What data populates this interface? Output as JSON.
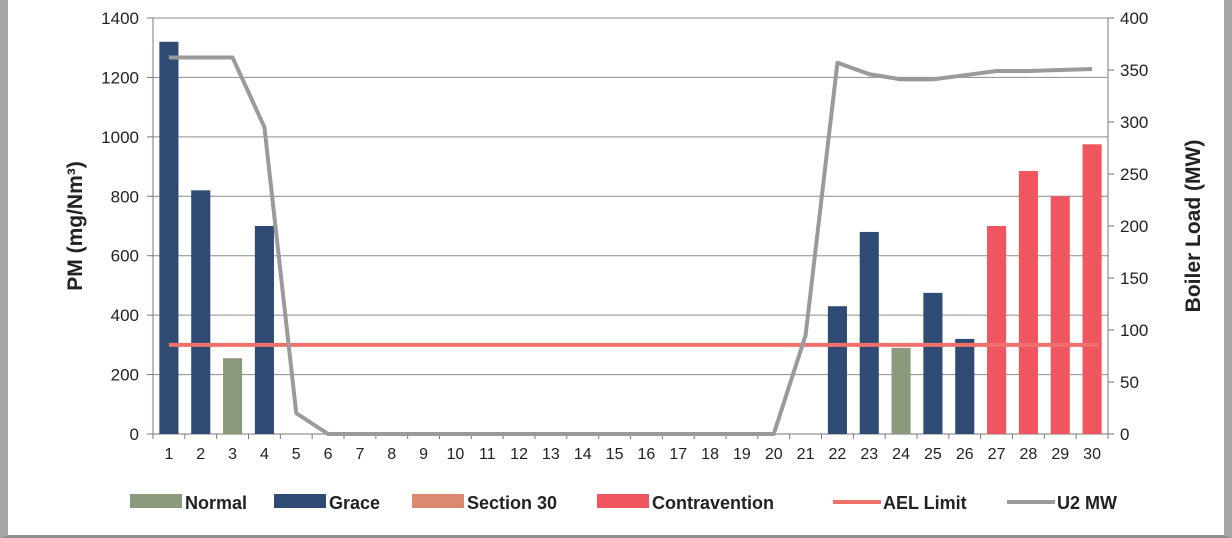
{
  "chart_data": {
    "type": "bar",
    "categories": [
      "1",
      "2",
      "3",
      "4",
      "5",
      "6",
      "7",
      "8",
      "9",
      "10",
      "11",
      "12",
      "13",
      "14",
      "15",
      "16",
      "17",
      "18",
      "19",
      "20",
      "21",
      "22",
      "23",
      "24",
      "25",
      "26",
      "27",
      "28",
      "29",
      "30"
    ],
    "left_axis": {
      "label": "PM (mg/Nm³)",
      "ylim": [
        0,
        1400
      ],
      "ticks": [
        "0",
        "200",
        "400",
        "600",
        "800",
        "1000",
        "1200",
        "1400"
      ]
    },
    "right_axis": {
      "label": "Boiler Load (MW)",
      "ylim": [
        0,
        400
      ],
      "ticks": [
        "0",
        "50",
        "100",
        "150",
        "200",
        "250",
        "300",
        "350",
        "400"
      ]
    },
    "grid": true,
    "legend_position": "bottom",
    "series": [
      {
        "name": "Normal",
        "kind": "bar",
        "axis": "left",
        "color": "#8a9a7b",
        "values": [
          null,
          null,
          255,
          null,
          null,
          null,
          null,
          null,
          null,
          null,
          null,
          null,
          null,
          null,
          null,
          null,
          null,
          null,
          null,
          null,
          null,
          null,
          null,
          290,
          null,
          null,
          null,
          null,
          null,
          null
        ]
      },
      {
        "name": "Grace",
        "kind": "bar",
        "axis": "left",
        "color": "#2f4b73",
        "values": [
          1320,
          820,
          null,
          700,
          null,
          null,
          null,
          null,
          null,
          null,
          null,
          null,
          null,
          null,
          null,
          null,
          null,
          null,
          null,
          null,
          null,
          430,
          680,
          null,
          475,
          320,
          null,
          null,
          null,
          null
        ]
      },
      {
        "name": "Section 30",
        "kind": "bar",
        "axis": "left",
        "color": "#d98a6f",
        "values": [
          null,
          null,
          null,
          null,
          null,
          null,
          null,
          null,
          null,
          null,
          null,
          null,
          null,
          null,
          null,
          null,
          null,
          null,
          null,
          null,
          null,
          null,
          null,
          null,
          null,
          null,
          null,
          null,
          null,
          null
        ]
      },
      {
        "name": "Contravention",
        "kind": "bar",
        "axis": "left",
        "color": "#f05660",
        "values": [
          null,
          null,
          null,
          null,
          null,
          null,
          null,
          null,
          null,
          null,
          null,
          null,
          null,
          null,
          null,
          null,
          null,
          null,
          null,
          null,
          null,
          null,
          null,
          null,
          null,
          null,
          700,
          885,
          800,
          975
        ]
      },
      {
        "name": "AEL Limit",
        "kind": "line",
        "axis": "left",
        "color": "#f0706c",
        "value": 300
      },
      {
        "name": "U2 MW",
        "kind": "line",
        "axis": "right",
        "color": "#9a9a9a",
        "values": [
          362,
          362,
          362,
          295,
          20,
          0,
          0,
          0,
          0,
          0,
          0,
          0,
          0,
          0,
          0,
          0,
          0,
          0,
          0,
          0,
          95,
          357,
          346,
          341,
          341,
          345,
          349,
          349,
          350,
          351
        ]
      }
    ]
  }
}
